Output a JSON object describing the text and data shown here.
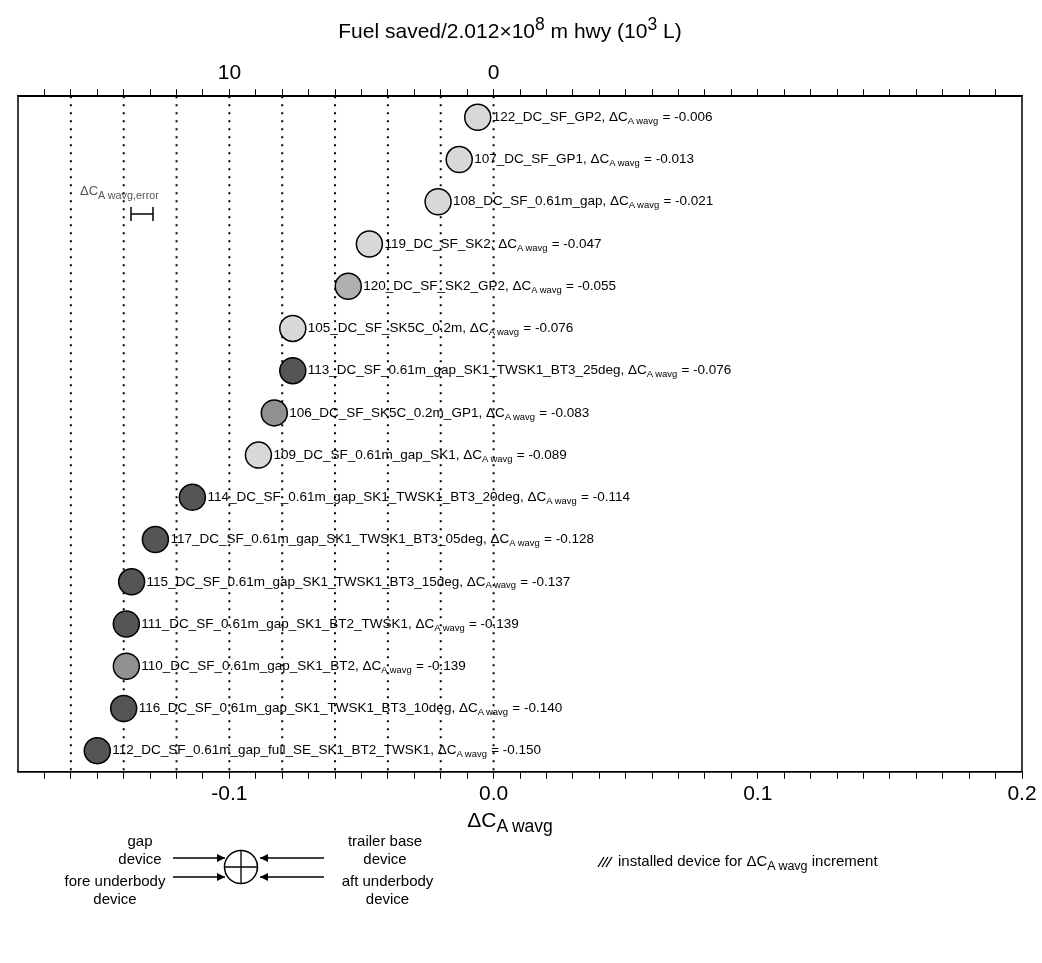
{
  "chart_data": {
    "type": "scatter",
    "x2label": "Fuel saved/2.012×10$^{8}$ m hwy  (10$^{3}$ L)",
    "xlabel": "ΔC$_{A wavg}$",
    "categories": [
      null,
      null,
      null,
      null,
      null,
      null,
      null,
      null,
      null,
      null,
      null,
      null,
      null,
      null,
      null,
      null
    ],
    "values": [
      -0.006,
      -0.013,
      -0.021,
      -0.047,
      -0.055,
      -0.076,
      -0.076,
      -0.083,
      -0.089,
      -0.114,
      -0.128,
      -0.137,
      -0.139,
      -0.139,
      -0.14,
      -0.15
    ],
    "value_labels": [
      "122_DC_SF_GP2, ΔC$_{A wavg}$ = -0.006",
      "107_DC_SF_GP1, ΔC$_{A wavg}$ = -0.013",
      "108_DC_SF_0.61m_gap, ΔC$_{A wavg}$ = -0.021",
      "119_DC_SF_SK2, ΔC$_{A wavg}$ = -0.047",
      "120_DC_SF_SK2_GP2, ΔC$_{A wavg}$ = -0.055",
      "105_DC_SF_SK5C_0.2m, ΔC$_{A wavg}$ = -0.076",
      "113_DC_SF_0.61m_gap_SK1_TWSK1_BT3_25deg, ΔC$_{A wavg}$ = -0.076",
      "106_DC_SF_SK5C_0.2m_GP1, ΔC$_{A wavg}$ = -0.083",
      "109_DC_SF_0.61m_gap_SK1, ΔC$_{A wavg}$ = -0.089",
      "114_DC_SF_0.61m_gap_SK1_TWSK1_BT3_20deg, ΔC$_{A wavg}$ = -0.114",
      "117_DC_SF_0.61m_gap_SK1_TWSK1_BT3_05deg, ΔC$_{A wavg}$ = -0.128",
      "115_DC_SF_0.61m_gap_SK1_TWSK1_BT3_15deg, ΔC$_{A wavg}$ = -0.137",
      "111_DC_SF_0.61m_gap_SK1_BT2_TWSK1, ΔC$_{A wavg}$ = -0.139",
      "110_DC_SF_0.61m_gap_SK1_BT2, ΔC$_{A wavg}$ = -0.139",
      "116_DC_SF_0.61m_gap_SK1_TWSK1_BT3_10deg, ΔC$_{A wavg}$ = -0.140",
      "112_DC_SF_0.61m_gap_full_SE_SK1_BT2_TWSK1, ΔC$_{A wavg}$ = -0.150"
    ],
    "colors": [
      "#d8d8d8",
      "#d8d8d8",
      "#d8d8d8",
      "#d8d8d8",
      "#b0b0b0",
      "#d8d8d8",
      "#555555",
      "#909090",
      "#d8d8d8",
      "#555555",
      "#555555",
      "#555555",
      "#555555",
      "#909090",
      "#555555",
      "#555555"
    ],
    "orientation": "horizontal",
    "marker": "circle",
    "legend": false,
    "grid": false,
    "tick_labels": "x",
    "xlim": [
      -0.18,
      0.2
    ],
    "xticks": [
      {
        "value": -0.17,
        "label": null
      },
      {
        "value": -0.16,
        "label": null
      },
      {
        "value": -0.15,
        "label": null
      },
      {
        "value": -0.14,
        "label": null
      },
      {
        "value": -0.13,
        "label": null
      },
      {
        "value": -0.12,
        "label": null
      },
      {
        "value": -0.11,
        "label": null
      },
      -0.1,
      {
        "value": -0.09,
        "label": null
      },
      {
        "value": -0.08,
        "label": null
      },
      {
        "value": -0.07,
        "label": null
      },
      {
        "value": -0.06,
        "label": null
      },
      {
        "value": -0.05,
        "label": null
      },
      {
        "value": -0.04,
        "label": null
      },
      {
        "value": -0.03,
        "label": null
      },
      {
        "value": -0.02,
        "label": null
      },
      {
        "value": -0.01,
        "label": null
      },
      {
        "value": 0,
        "label": "0.0"
      },
      {
        "value": 0.01,
        "label": null
      },
      {
        "value": 0.02,
        "label": null
      },
      {
        "value": 0.03,
        "label": null
      },
      {
        "value": 0.04,
        "label": null
      },
      {
        "value": 0.05,
        "label": null
      },
      {
        "value": 0.06,
        "label": null
      },
      {
        "value": 0.07,
        "label": null
      },
      {
        "value": 0.08,
        "label": null
      },
      {
        "value": 0.09,
        "label": null
      },
      0.1,
      {
        "value": 0.11,
        "label": null
      },
      {
        "value": 0.12,
        "label": null
      },
      {
        "value": 0.13,
        "label": null
      },
      {
        "value": 0.14,
        "label": null
      },
      {
        "value": 0.15,
        "label": null
      },
      {
        "value": 0.16,
        "label": null
      },
      {
        "value": 0.17,
        "label": null
      },
      {
        "value": 0.18,
        "label": null
      },
      {
        "value": 0.19,
        "label": null
      },
      0.2
    ],
    "x2lim": [
      18,
      -20
    ],
    "x2ticks": [
      {
        "value": 17,
        "label": null
      },
      {
        "value": 16,
        "label": null
      },
      {
        "value": 15,
        "label": null
      },
      {
        "value": 14,
        "label": null
      },
      {
        "value": 13,
        "label": null
      },
      {
        "value": 12,
        "label": null
      },
      {
        "value": 11,
        "label": null
      },
      10,
      {
        "value": 9,
        "label": null
      },
      {
        "value": 8,
        "label": null
      },
      {
        "value": 7,
        "label": null
      },
      {
        "value": 6,
        "label": null
      },
      {
        "value": 5,
        "label": null
      },
      {
        "value": 4,
        "label": null
      },
      {
        "value": 3,
        "label": null
      },
      {
        "value": 2,
        "label": null
      },
      {
        "value": 1,
        "label": null
      },
      0,
      {
        "value": -1,
        "label": null
      },
      {
        "value": -2,
        "label": null
      },
      {
        "value": -3,
        "label": null
      },
      {
        "value": -4,
        "label": null
      },
      {
        "value": -5,
        "label": null
      },
      {
        "value": -6,
        "label": null
      },
      {
        "value": -7,
        "label": null
      },
      {
        "value": -8,
        "label": null
      },
      {
        "value": -9,
        "label": null
      },
      {
        "value": -10,
        "label": null
      },
      {
        "value": -11,
        "label": null
      },
      {
        "value": -12,
        "label": null
      },
      {
        "value": -13,
        "label": null
      },
      {
        "value": -14,
        "label": null
      },
      {
        "value": -15,
        "label": null
      },
      {
        "value": -16,
        "label": null
      },
      {
        "value": -17,
        "label": null
      },
      {
        "value": -18,
        "label": null
      },
      {
        "value": -19,
        "label": null
      }
    ],
    "ref_lines": [
      {
        "axis": "x",
        "value": -0.16,
        "line_style": "dotted",
        "color": "#000000"
      },
      {
        "axis": "x",
        "value": -0.14,
        "line_style": "dotted",
        "color": "#000000"
      },
      {
        "axis": "x",
        "value": -0.12,
        "line_style": "dotted",
        "color": "#000000"
      },
      {
        "axis": "x",
        "value": -0.1,
        "line_style": "dotted",
        "color": "#000000"
      },
      {
        "axis": "x",
        "value": -0.08,
        "line_style": "dotted",
        "color": "#000000"
      },
      {
        "axis": "x",
        "value": -0.06,
        "line_style": "dotted",
        "color": "#000000"
      },
      {
        "axis": "x",
        "value": -0.04,
        "line_style": "dotted",
        "color": "#000000"
      },
      {
        "axis": "x",
        "value": -0.02,
        "line_style": "dotted",
        "color": "#000000"
      },
      {
        "axis": "x",
        "value": 0,
        "line_style": "dotted",
        "color": "#000000"
      }
    ],
    "annotations": [
      "ΔC$_{A wavg,error}$",
      "gap device",
      "fore underbody device",
      "trailer base device",
      "aft underbody device",
      "installed device for ΔC$_{A wavg}$ increment"
    ]
  }
}
